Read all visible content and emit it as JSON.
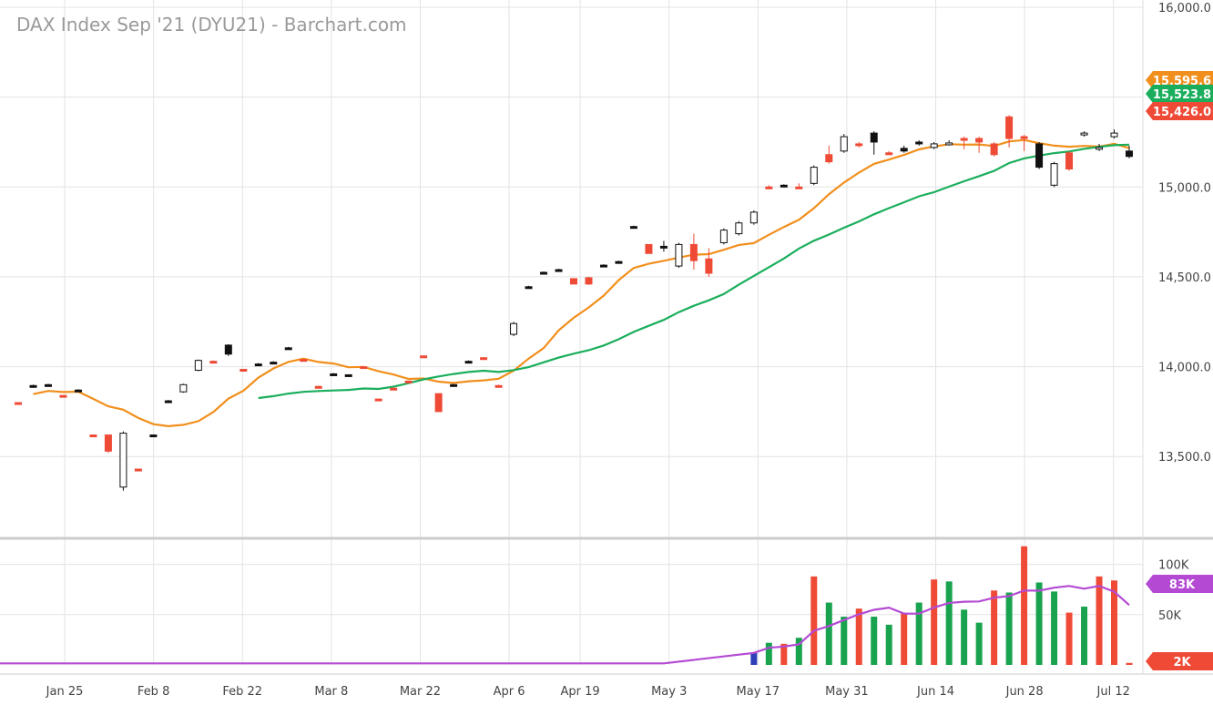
{
  "chart_data": {
    "type": "candlestick",
    "title": "DAX Index Sep '21 (DYU21) - Barchart.com",
    "price_axis": {
      "range": [
        13050,
        16000
      ],
      "ticks": [
        "13,500.0",
        "14,000.0",
        "14,500.0",
        "15,000.0",
        "16,000.0"
      ],
      "tick_values": [
        13500,
        14000,
        14500,
        15000,
        16000
      ]
    },
    "volume_axis": {
      "range": [
        0,
        125000
      ],
      "ticks": [
        "50K",
        "100K"
      ],
      "tick_values": [
        50000,
        100000
      ]
    },
    "x_axis": {
      "labels": [
        {
          "text": "Jan 25",
          "index": 2
        },
        {
          "text": "Feb 8",
          "index": 7
        },
        {
          "text": "Feb 22",
          "index": 12
        },
        {
          "text": "Mar 8",
          "index": 17
        },
        {
          "text": "Mar 22",
          "index": 22
        },
        {
          "text": "Apr 6",
          "index": 27
        },
        {
          "text": "Apr 19",
          "index": 31
        },
        {
          "text": "May 3",
          "index": 36
        },
        {
          "text": "May 17",
          "index": 41
        },
        {
          "text": "May 31",
          "index": 46
        },
        {
          "text": "Jun 14",
          "index": 51
        },
        {
          "text": "Jun 28",
          "index": 56
        },
        {
          "text": "Jul 12",
          "index": 61
        }
      ]
    },
    "candles": [
      {
        "o": 13800,
        "h": 13800,
        "l": 13800,
        "c": 13800,
        "color": "red"
      },
      {
        "o": 13895,
        "h": 13900,
        "l": 13890,
        "c": 13895,
        "color": "black"
      },
      {
        "o": 13900,
        "h": 13905,
        "l": 13895,
        "c": 13900,
        "color": "black"
      },
      {
        "o": 13840,
        "h": 13840,
        "l": 13840,
        "c": 13840,
        "color": "red"
      },
      {
        "o": 13870,
        "h": 13875,
        "l": 13865,
        "c": 13870,
        "color": "black"
      },
      {
        "o": 13620,
        "h": 13620,
        "l": 13620,
        "c": 13620,
        "color": "red"
      },
      {
        "o": 13620,
        "h": 13620,
        "l": 13520,
        "c": 13530,
        "color": "red"
      },
      {
        "o": 13330,
        "h": 13640,
        "l": 13310,
        "c": 13630,
        "color": "hollow"
      },
      {
        "o": 13430,
        "h": 13430,
        "l": 13430,
        "c": 13430,
        "color": "red"
      },
      {
        "o": 13620,
        "h": 13620,
        "l": 13620,
        "c": 13620,
        "color": "black"
      },
      {
        "o": 13810,
        "h": 13815,
        "l": 13805,
        "c": 13810,
        "color": "black"
      },
      {
        "o": 13860,
        "h": 13905,
        "l": 13855,
        "c": 13900,
        "color": "hollow"
      },
      {
        "o": 13980,
        "h": 14040,
        "l": 13975,
        "c": 14035,
        "color": "hollow"
      },
      {
        "o": 14030,
        "h": 14035,
        "l": 14025,
        "c": 14030,
        "color": "red"
      },
      {
        "o": 14070,
        "h": 14125,
        "l": 14060,
        "c": 14120,
        "color": "black"
      },
      {
        "o": 13985,
        "h": 13985,
        "l": 13985,
        "c": 13985,
        "color": "red"
      },
      {
        "o": 14015,
        "h": 14020,
        "l": 14010,
        "c": 14015,
        "color": "black"
      },
      {
        "o": 14025,
        "h": 14030,
        "l": 14020,
        "c": 14025,
        "color": "black"
      },
      {
        "o": 14105,
        "h": 14110,
        "l": 14100,
        "c": 14105,
        "color": "black"
      },
      {
        "o": 14040,
        "h": 14040,
        "l": 14040,
        "c": 14040,
        "color": "red"
      },
      {
        "o": 13890,
        "h": 13895,
        "l": 13885,
        "c": 13890,
        "color": "red"
      },
      {
        "o": 13960,
        "h": 13965,
        "l": 13955,
        "c": 13960,
        "color": "black"
      },
      {
        "o": 13955,
        "h": 13955,
        "l": 13955,
        "c": 13955,
        "color": "black"
      },
      {
        "o": 14000,
        "h": 14000,
        "l": 14000,
        "c": 14000,
        "color": "red"
      },
      {
        "o": 13820,
        "h": 13820,
        "l": 13820,
        "c": 13820,
        "color": "red"
      },
      {
        "o": 13880,
        "h": 13885,
        "l": 13875,
        "c": 13880,
        "color": "red"
      },
      {
        "o": 13920,
        "h": 13920,
        "l": 13910,
        "c": 13910,
        "color": "red"
      },
      {
        "o": 14060,
        "h": 14060,
        "l": 14060,
        "c": 14060,
        "color": "red"
      },
      {
        "o": 13850,
        "h": 13850,
        "l": 13750,
        "c": 13750,
        "color": "red"
      },
      {
        "o": 13900,
        "h": 13905,
        "l": 13895,
        "c": 13900,
        "color": "black"
      },
      {
        "o": 14030,
        "h": 14035,
        "l": 14025,
        "c": 14030,
        "color": "black"
      },
      {
        "o": 14050,
        "h": 14050,
        "l": 14040,
        "c": 14040,
        "color": "red"
      },
      {
        "o": 13895,
        "h": 13900,
        "l": 13890,
        "c": 13895,
        "color": "red"
      },
      {
        "o": 14180,
        "h": 14250,
        "l": 14170,
        "c": 14240,
        "color": "hollow"
      },
      {
        "o": 14445,
        "h": 14450,
        "l": 14440,
        "c": 14445,
        "color": "black"
      },
      {
        "o": 14525,
        "h": 14530,
        "l": 14520,
        "c": 14525,
        "color": "black"
      },
      {
        "o": 14540,
        "h": 14545,
        "l": 14535,
        "c": 14540,
        "color": "black"
      },
      {
        "o": 14490,
        "h": 14490,
        "l": 14460,
        "c": 14460,
        "color": "red"
      },
      {
        "o": 14460,
        "h": 14500,
        "l": 14455,
        "c": 14495,
        "color": "red"
      },
      {
        "o": 14565,
        "h": 14570,
        "l": 14560,
        "c": 14565,
        "color": "black"
      },
      {
        "o": 14585,
        "h": 14590,
        "l": 14580,
        "c": 14585,
        "color": "black"
      },
      {
        "o": 14780,
        "h": 14785,
        "l": 14775,
        "c": 14780,
        "color": "black"
      },
      {
        "o": 14680,
        "h": 14680,
        "l": 14630,
        "c": 14630,
        "color": "red"
      },
      {
        "o": 14670,
        "h": 14700,
        "l": 14640,
        "c": 14660,
        "color": "black"
      },
      {
        "o": 14560,
        "h": 14690,
        "l": 14550,
        "c": 14680,
        "color": "hollow"
      },
      {
        "o": 14680,
        "h": 14740,
        "l": 14540,
        "c": 14590,
        "color": "red"
      },
      {
        "o": 14600,
        "h": 14660,
        "l": 14500,
        "c": 14520,
        "color": "red"
      },
      {
        "o": 14690,
        "h": 14770,
        "l": 14680,
        "c": 14760,
        "color": "hollow"
      },
      {
        "o": 14740,
        "h": 14810,
        "l": 14730,
        "c": 14800,
        "color": "hollow"
      },
      {
        "o": 14800,
        "h": 14870,
        "l": 14790,
        "c": 14860,
        "color": "hollow"
      },
      {
        "o": 15000,
        "h": 15010,
        "l": 14990,
        "c": 15000,
        "color": "red"
      },
      {
        "o": 15010,
        "h": 15015,
        "l": 15005,
        "c": 15010,
        "color": "black"
      },
      {
        "o": 15000,
        "h": 15020,
        "l": 14995,
        "c": 15000,
        "color": "red"
      },
      {
        "o": 15020,
        "h": 15120,
        "l": 15010,
        "c": 15110,
        "color": "hollow"
      },
      {
        "o": 15180,
        "h": 15230,
        "l": 15130,
        "c": 15140,
        "color": "red"
      },
      {
        "o": 15200,
        "h": 15295,
        "l": 15190,
        "c": 15280,
        "color": "hollow"
      },
      {
        "o": 15230,
        "h": 15250,
        "l": 15220,
        "c": 15240,
        "color": "red"
      },
      {
        "o": 15300,
        "h": 15310,
        "l": 15180,
        "c": 15250,
        "color": "black"
      },
      {
        "o": 15190,
        "h": 15200,
        "l": 15180,
        "c": 15190,
        "color": "red"
      },
      {
        "o": 15200,
        "h": 15230,
        "l": 15190,
        "c": 15215,
        "color": "black"
      },
      {
        "o": 15240,
        "h": 15260,
        "l": 15230,
        "c": 15250,
        "color": "black"
      },
      {
        "o": 15220,
        "h": 15250,
        "l": 15210,
        "c": 15240,
        "color": "hollow"
      },
      {
        "o": 15245,
        "h": 15260,
        "l": 15230,
        "c": 15240,
        "color": "hollow"
      },
      {
        "o": 15270,
        "h": 15280,
        "l": 15210,
        "c": 15260,
        "color": "red"
      },
      {
        "o": 15270,
        "h": 15280,
        "l": 15190,
        "c": 15250,
        "color": "red"
      },
      {
        "o": 15240,
        "h": 15250,
        "l": 15170,
        "c": 15180,
        "color": "red"
      },
      {
        "o": 15270,
        "h": 15400,
        "l": 15220,
        "c": 15390,
        "color": "red"
      },
      {
        "o": 15270,
        "h": 15290,
        "l": 15200,
        "c": 15280,
        "color": "red"
      },
      {
        "o": 15240,
        "h": 15250,
        "l": 15100,
        "c": 15110,
        "color": "black"
      },
      {
        "o": 15010,
        "h": 15140,
        "l": 15000,
        "c": 15130,
        "color": "hollow"
      },
      {
        "o": 15100,
        "h": 15200,
        "l": 15090,
        "c": 15190,
        "color": "red"
      },
      {
        "o": 15290,
        "h": 15310,
        "l": 15280,
        "c": 15300,
        "color": "hollow"
      },
      {
        "o": 15210,
        "h": 15240,
        "l": 15200,
        "c": 15220,
        "color": "hollow"
      },
      {
        "o": 15280,
        "h": 15320,
        "l": 15270,
        "c": 15300,
        "color": "hollow"
      },
      {
        "o": 15170,
        "h": 15230,
        "l": 15160,
        "c": 15200,
        "color": "black"
      }
    ],
    "moving_averages": [
      {
        "color": "#f18f1c",
        "last_value": "15,595.6"
      },
      {
        "color": "#1aae5c",
        "last_value": "15,523.8"
      }
    ],
    "last_price": {
      "value": "15,426.0",
      "color": "#ee4a36"
    },
    "volume": {
      "last_label": "2K",
      "avg_label": "83K",
      "bars": [
        {
          "v": 12000,
          "color": "blue"
        },
        {
          "v": 22000,
          "color": "green"
        },
        {
          "v": 21000,
          "color": "red"
        },
        {
          "v": 27000,
          "color": "green"
        },
        {
          "v": 88000,
          "color": "red"
        },
        {
          "v": 62000,
          "color": "green"
        },
        {
          "v": 48000,
          "color": "green"
        },
        {
          "v": 56000,
          "color": "red"
        },
        {
          "v": 48000,
          "color": "green"
        },
        {
          "v": 40000,
          "color": "green"
        },
        {
          "v": 52000,
          "color": "red"
        },
        {
          "v": 62000,
          "color": "green"
        },
        {
          "v": 85000,
          "color": "red"
        },
        {
          "v": 83000,
          "color": "green"
        },
        {
          "v": 55000,
          "color": "green"
        },
        {
          "v": 42000,
          "color": "green"
        },
        {
          "v": 74000,
          "color": "red"
        },
        {
          "v": 72000,
          "color": "green"
        },
        {
          "v": 118000,
          "color": "red"
        },
        {
          "v": 82000,
          "color": "green"
        },
        {
          "v": 73000,
          "color": "green"
        },
        {
          "v": 52000,
          "color": "red"
        },
        {
          "v": 58000,
          "color": "green"
        },
        {
          "v": 88000,
          "color": "red"
        },
        {
          "v": 84000,
          "color": "red"
        },
        {
          "v": 2000,
          "color": "red"
        }
      ]
    }
  }
}
